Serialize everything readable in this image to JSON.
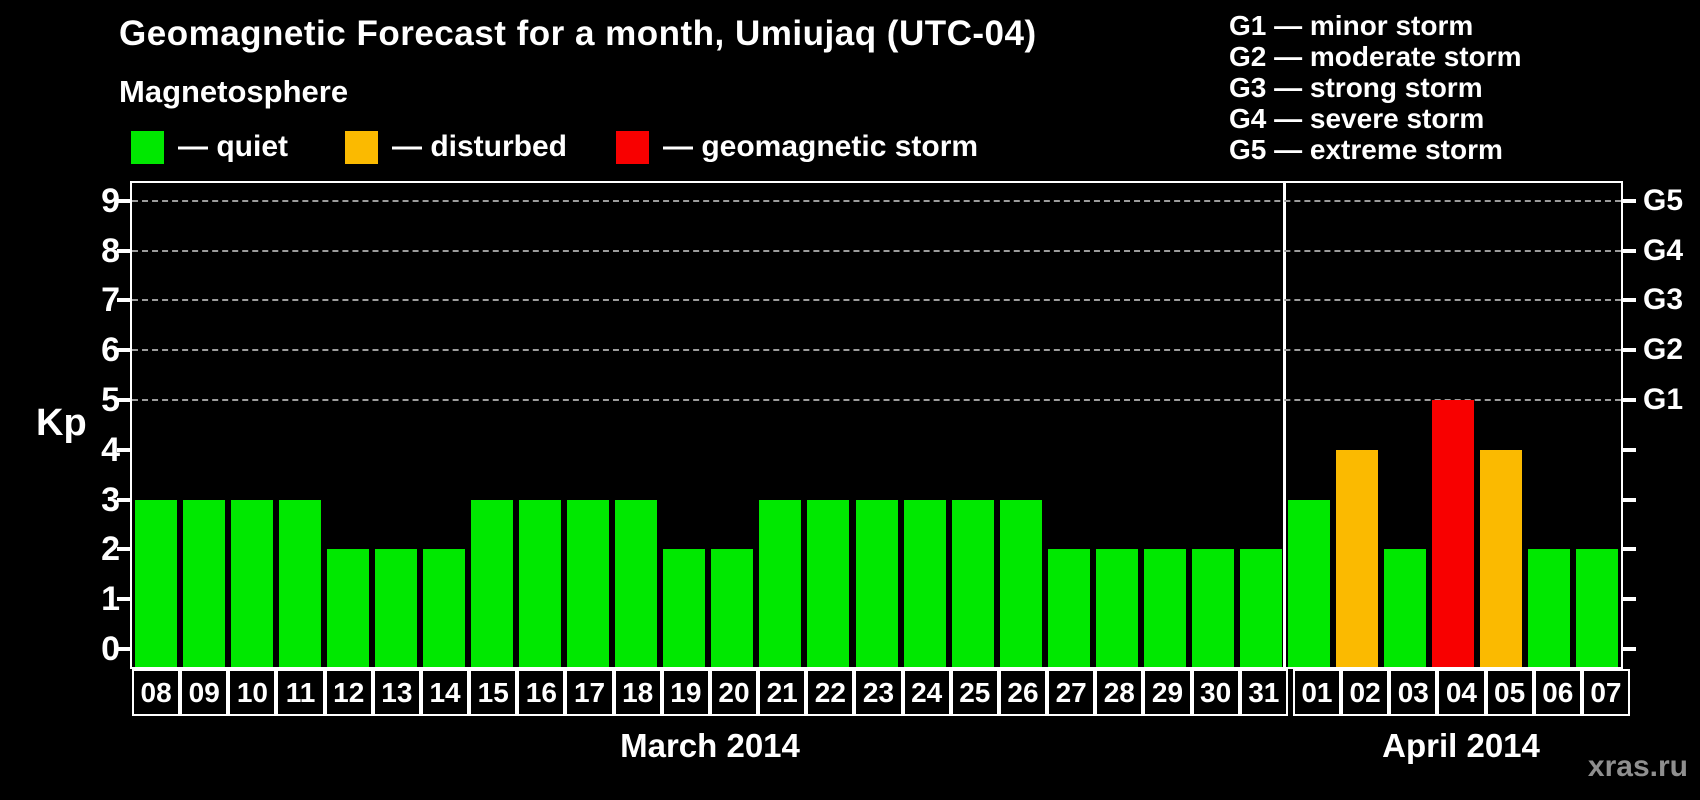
{
  "title": "Geomagnetic Forecast for a month, Umiujaq (UTC-04)",
  "subtitle": "Magnetosphere",
  "legend": {
    "items": [
      {
        "key": "quiet",
        "label": "— quiet",
        "color": "#00e800"
      },
      {
        "key": "disturbed",
        "label": "— disturbed",
        "color": "#fbba00"
      },
      {
        "key": "storm",
        "label": "— geomagnetic storm",
        "color": "#f80000"
      }
    ]
  },
  "g_scale_legend": [
    "G1 — minor storm",
    "G2 — moderate storm",
    "G3 — strong storm",
    "G4 — severe storm",
    "G5 — extreme storm"
  ],
  "watermark": "xras.ru",
  "colors": {
    "background": "#000000",
    "text": "#ffffff",
    "quiet": "#00e800",
    "disturbed": "#fbba00",
    "storm": "#f80000",
    "grid": "#9c9c9c",
    "axis": "#ffffff",
    "watermark": "#8f8f8f"
  },
  "chart_data": {
    "type": "bar",
    "title": "Geomagnetic Forecast for a month, Umiujaq (UTC-04)",
    "ylabel": "Kp",
    "ylim": [
      0,
      9
    ],
    "yticks": [
      "0",
      "1",
      "2",
      "3",
      "4",
      "5",
      "6",
      "7",
      "8",
      "9"
    ],
    "grid": "horizontal dashed lines at Kp 5-9",
    "legend_position": "top",
    "right_axis": [
      {
        "kp": 5,
        "label": "G1"
      },
      {
        "kp": 6,
        "label": "G2"
      },
      {
        "kp": 7,
        "label": "G3"
      },
      {
        "kp": 8,
        "label": "G4"
      },
      {
        "kp": 9,
        "label": "G5"
      }
    ],
    "color_rule": {
      "quiet_kp_max": 3,
      "disturbed_kp": 4,
      "storm_kp_min": 5
    },
    "groups": [
      {
        "label": "March 2014",
        "categories": [
          "08",
          "09",
          "10",
          "11",
          "12",
          "13",
          "14",
          "15",
          "16",
          "17",
          "18",
          "19",
          "20",
          "21",
          "22",
          "23",
          "24",
          "25",
          "26",
          "27",
          "28",
          "29",
          "30",
          "31"
        ],
        "values": [
          3,
          3,
          3,
          3,
          2,
          2,
          2,
          3,
          3,
          3,
          3,
          2,
          2,
          3,
          3,
          3,
          3,
          3,
          3,
          2,
          2,
          2,
          2,
          2
        ]
      },
      {
        "label": "April 2014",
        "categories": [
          "01",
          "02",
          "03",
          "04",
          "05",
          "06",
          "07"
        ],
        "values": [
          3,
          4,
          2,
          5,
          4,
          2,
          2
        ]
      }
    ]
  }
}
